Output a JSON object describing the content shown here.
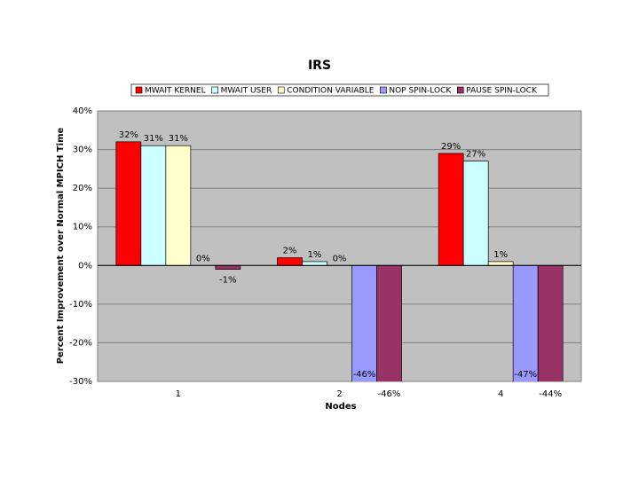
{
  "chart_data": {
    "type": "bar",
    "title": "IRS",
    "x_label": "Nodes",
    "y_label": "Percent Improvement over Normal MPICH Time",
    "categories": [
      "1",
      "2",
      "4"
    ],
    "series": [
      {
        "name": "MWAIT KERNEL",
        "color": "#ff0000",
        "values": [
          32,
          2,
          29
        ],
        "value_labels": [
          "32%",
          "2%",
          "29%"
        ]
      },
      {
        "name": "MWAIT USER",
        "color": "#ccffff",
        "values": [
          31,
          1,
          27
        ],
        "value_labels": [
          "31%",
          "1%",
          "27%"
        ]
      },
      {
        "name": "CONDITION VARIABLE",
        "color": "#ffffcc",
        "values": [
          31,
          0,
          1
        ],
        "value_labels": [
          "31%",
          "0%",
          "1%"
        ]
      },
      {
        "name": "NOP SPIN-LOCK",
        "color": "#9999ff",
        "values": [
          0,
          -46,
          -47
        ],
        "value_labels": [
          "0%",
          "-46%",
          "-47%"
        ]
      },
      {
        "name": "PAUSE SPIN-LOCK",
        "color": "#993366",
        "values": [
          -1,
          -46,
          -44
        ],
        "value_labels": [
          "-1%",
          "-46%",
          "-44%"
        ]
      }
    ],
    "ylim": [
      -30,
      40
    ],
    "yticks": [
      {
        "value": -30,
        "label": "-30%"
      },
      {
        "value": -20,
        "label": "-20%"
      },
      {
        "value": -10,
        "label": "-10%"
      },
      {
        "value": 0,
        "label": "0%"
      },
      {
        "value": 10,
        "label": "10%"
      },
      {
        "value": 20,
        "label": "20%"
      },
      {
        "value": 30,
        "label": "30%"
      },
      {
        "value": 40,
        "label": "40%"
      }
    ],
    "grid": true,
    "legend": "top"
  }
}
